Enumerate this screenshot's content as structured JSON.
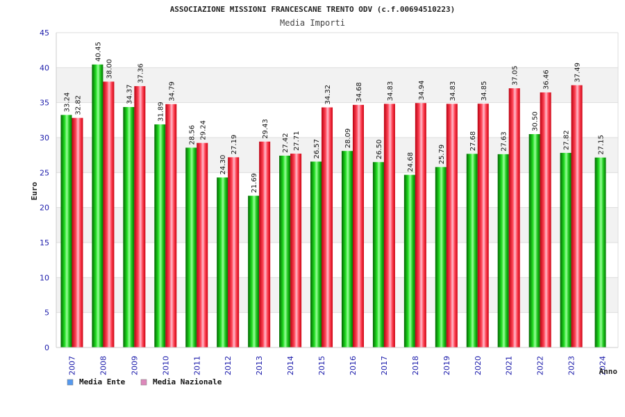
{
  "chart_data": {
    "type": "bar",
    "title": "ASSOCIAZIONE MISSIONI FRANCESCANE TRENTO ODV (c.f.00694510223)",
    "subtitle": "Media Importi",
    "ylabel": "Euro",
    "xlabel": "Anno",
    "ylim": [
      0,
      45
    ],
    "yticks": [
      0,
      5,
      10,
      15,
      20,
      25,
      30,
      35,
      40,
      45
    ],
    "categories": [
      "2007",
      "2008",
      "2009",
      "2010",
      "2011",
      "2012",
      "2013",
      "2014",
      "2015",
      "2016",
      "2017",
      "2018",
      "2019",
      "2020",
      "2021",
      "2022",
      "2023",
      "2024"
    ],
    "series": [
      {
        "name": "Media Ente",
        "color": "#00aa00",
        "legend_color": "#5599ee",
        "values": [
          33.24,
          40.45,
          34.37,
          31.89,
          28.56,
          24.3,
          21.69,
          27.42,
          26.57,
          28.09,
          26.5,
          24.68,
          25.79,
          27.68,
          27.63,
          30.5,
          27.82,
          27.15
        ],
        "labels": [
          "33.24",
          "40.45",
          "34.37",
          "31.89",
          "28.56",
          "24.30",
          "21.69",
          "27.42",
          "26.57",
          "28.09",
          "26.50",
          "24.68",
          "25.79",
          "27.68",
          "27.63",
          "30.50",
          "27.82",
          "27.15"
        ]
      },
      {
        "name": "Media Nazionale",
        "color": "#ee2233",
        "legend_color": "#dd88bb",
        "values": [
          32.82,
          38.0,
          37.36,
          34.79,
          29.24,
          27.19,
          29.43,
          27.71,
          34.32,
          34.68,
          34.83,
          34.94,
          34.83,
          34.85,
          37.05,
          36.46,
          37.49,
          null
        ],
        "labels": [
          "32.82",
          "38.00",
          "37.36",
          "34.79",
          "29.24",
          "27.19",
          "29.43",
          "27.71",
          "34.32",
          "34.68",
          "34.83",
          "34.94",
          "34.83",
          "34.85",
          "37.05",
          "36.46",
          "37.49",
          null
        ]
      }
    ],
    "grid": true,
    "legend_position": "bottom-left"
  }
}
